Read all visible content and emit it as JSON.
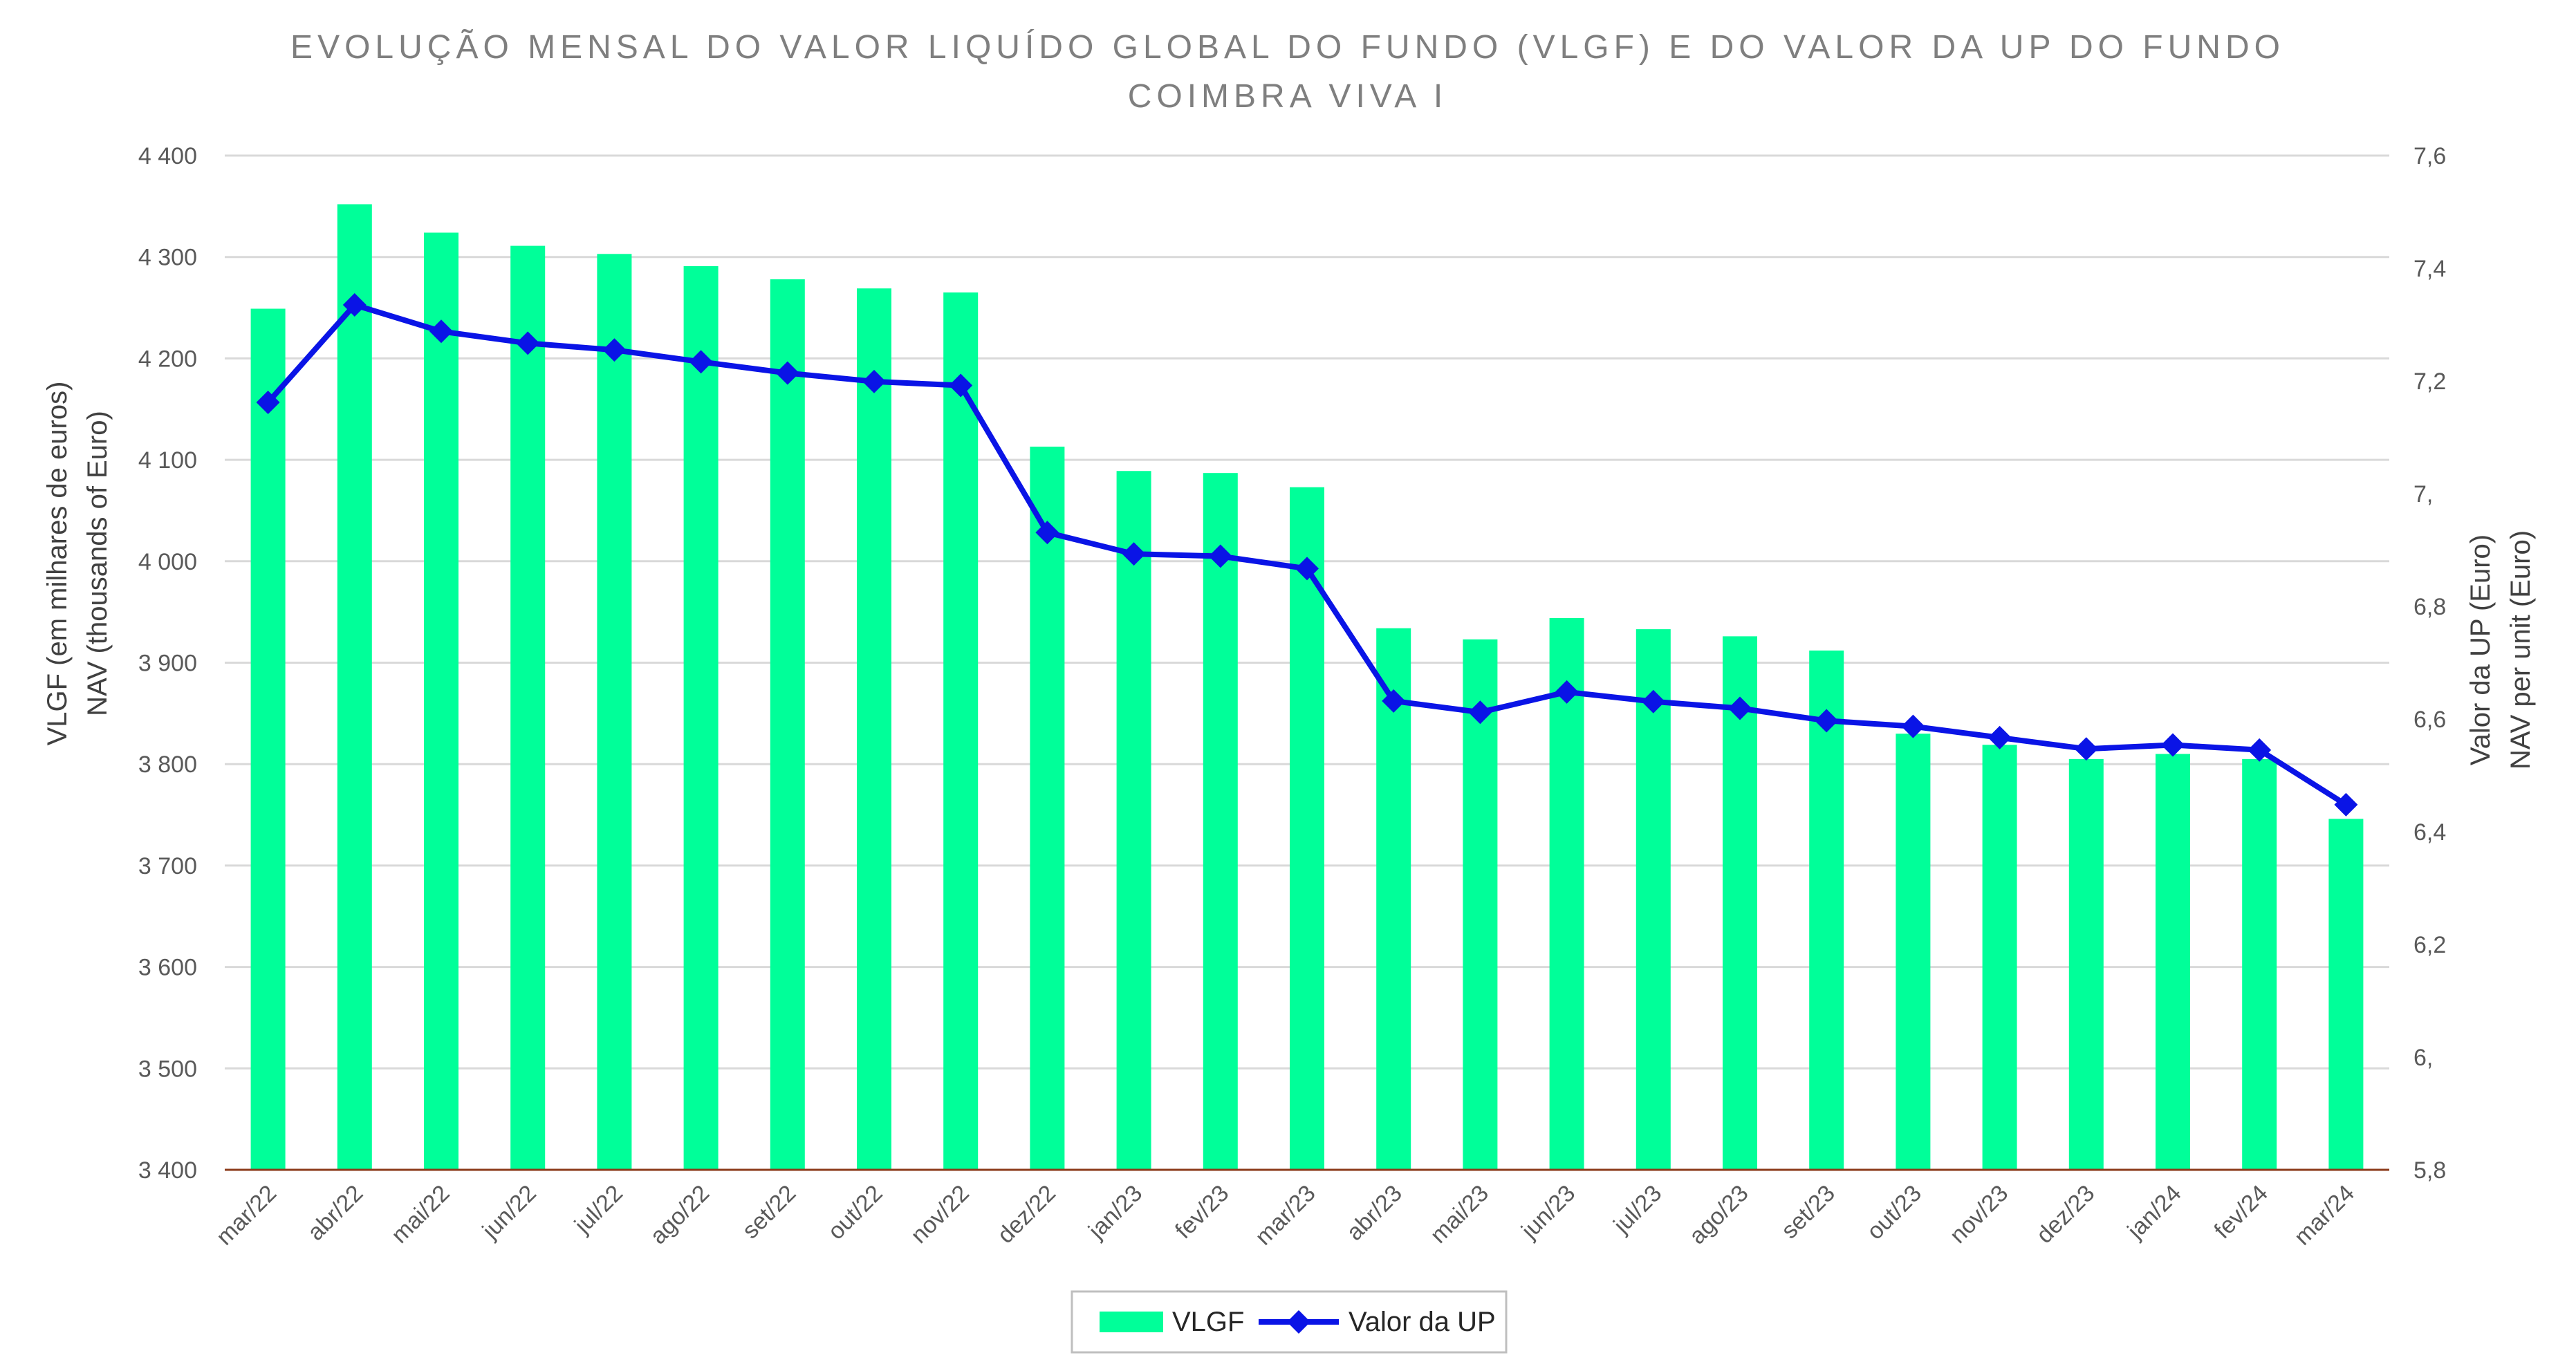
{
  "chart_data": {
    "type": "bar",
    "title_lines": [
      "EVOLUÇÃO MENSAL DO VALOR LIQUÍDO GLOBAL DO FUNDO (VLGF) E DO VALOR DA UP DO FUNDO",
      "COIMBRA VIVA I"
    ],
    "categories": [
      "mar/22",
      "abr/22",
      "mai/22",
      "jun/22",
      "jul/22",
      "ago/22",
      "set/22",
      "out/22",
      "nov/22",
      "dez/22",
      "jan/23",
      "fev/23",
      "mar/23",
      "abr/23",
      "mai/23",
      "jun/23",
      "jul/23",
      "ago/23",
      "set/23",
      "out/23",
      "nov/23",
      "dez/23",
      "jan/24",
      "fev/24",
      "mar/24"
    ],
    "series": [
      {
        "name": "VLGF",
        "type": "bar",
        "axis": "left",
        "color": "#00ff99",
        "values": [
          4249,
          4352,
          4324,
          4311,
          4303,
          4291,
          4278,
          4269,
          4265,
          4113,
          4089,
          4087,
          4073,
          3934,
          3923,
          3944,
          3933,
          3926,
          3912,
          3830,
          3819,
          3805,
          3810,
          3805,
          3746
        ]
      },
      {
        "name": "Valor da UP",
        "type": "line",
        "axis": "right",
        "color": "#0a14e6",
        "marker": "diamond",
        "values": [
          7.162,
          7.335,
          7.288,
          7.267,
          7.255,
          7.234,
          7.214,
          7.199,
          7.192,
          6.931,
          6.893,
          6.889,
          6.867,
          6.632,
          6.612,
          6.648,
          6.631,
          6.619,
          6.597,
          6.587,
          6.567,
          6.547,
          6.554,
          6.545,
          6.448
        ]
      }
    ],
    "y_left": {
      "title_lines": [
        "VLGF (em milhares de euros)",
        "NAV (thousands of Euro)"
      ],
      "min": 3400,
      "max": 4400,
      "step": 100,
      "tick_labels": [
        "3 400",
        "3 500",
        "3 600",
        "3 700",
        "3 800",
        "3 900",
        "4 000",
        "4 100",
        "4 200",
        "4 300",
        "4 400"
      ]
    },
    "y_right": {
      "title_lines": [
        "Valor da UP (Euro)",
        "NAV per unit (Euro)"
      ],
      "min": 5.8,
      "max": 7.6,
      "step": 0.2,
      "tick_labels": [
        "5,8",
        "6,",
        "6,2",
        "6,4",
        "6,6",
        "6,8",
        "7,",
        "7,2",
        "7,4",
        "7,6"
      ]
    },
    "grid": true,
    "legend": {
      "position": "bottom",
      "items": [
        "VLGF",
        "Valor da UP"
      ]
    },
    "colors": {
      "gridline": "#d9d9d9",
      "baseline": "#8b3a1a",
      "line_series": "#0a14e6",
      "bar_series": "#00ff99"
    }
  }
}
